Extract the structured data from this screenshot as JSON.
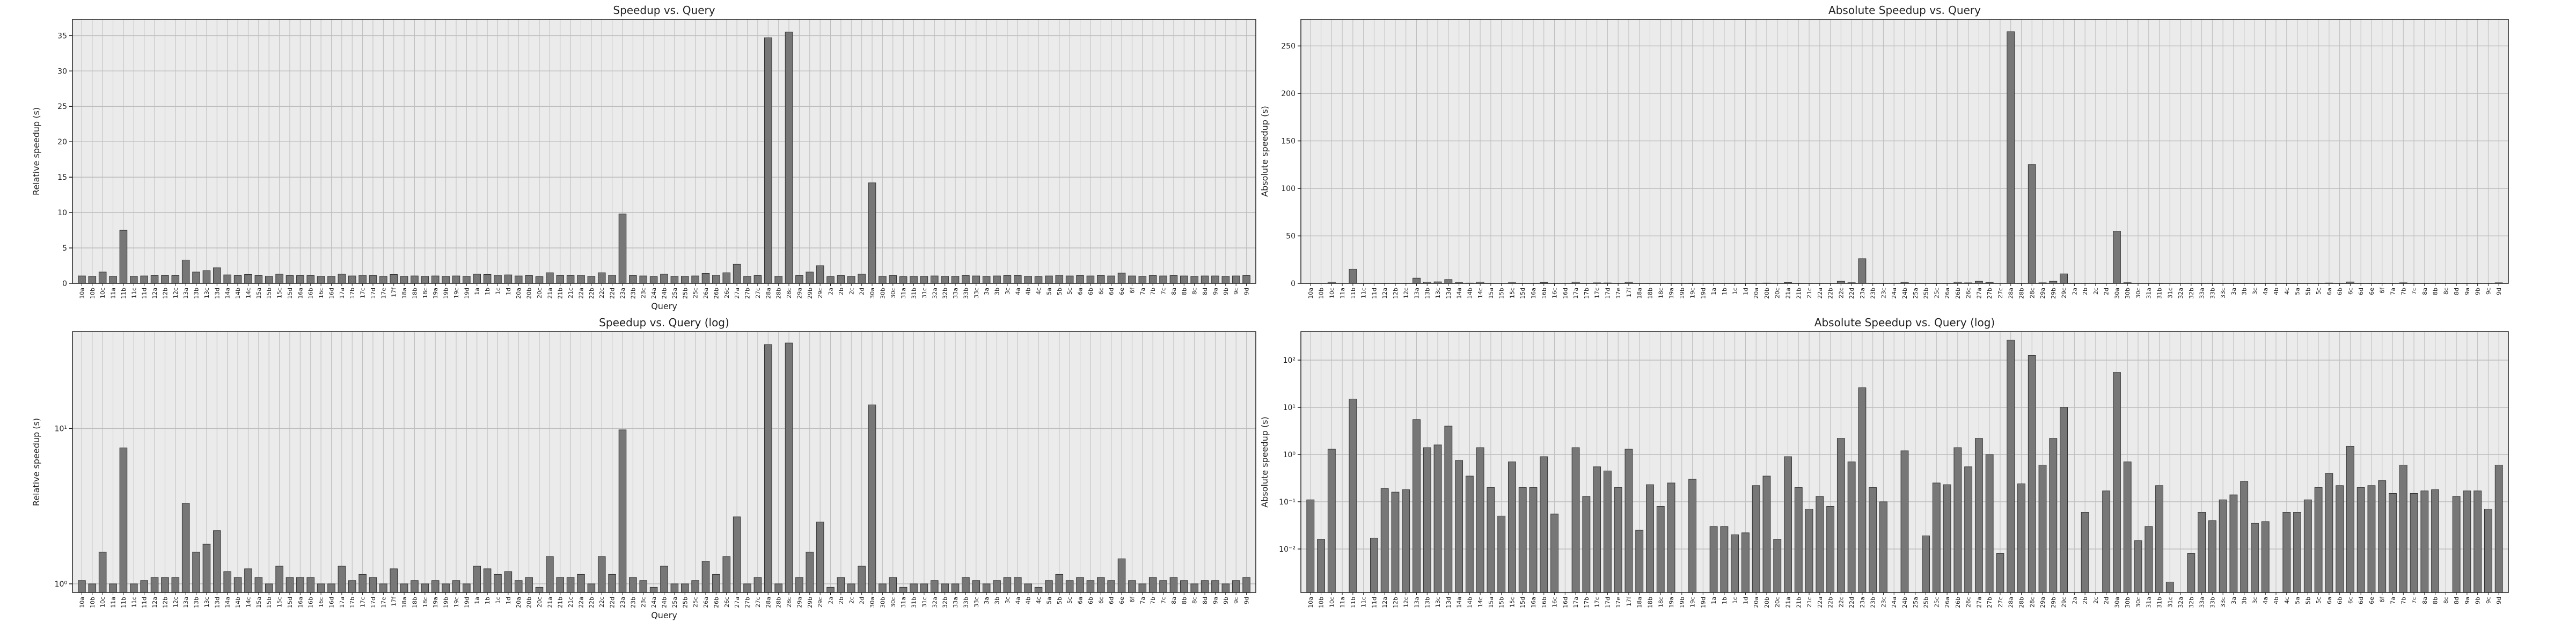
{
  "chart_data": [
    {
      "type": "bar",
      "title": "Speedup vs. Query",
      "xlabel": "Query",
      "ylabel": "Relative speedup (s)",
      "log_scale": false,
      "grid": true,
      "color": "#777777",
      "categories": [
        "10a",
        "10b",
        "10c",
        "11a",
        "11b",
        "11c",
        "11d",
        "12a",
        "12b",
        "12c",
        "13a",
        "13b",
        "13c",
        "13d",
        "14a",
        "14b",
        "14c",
        "15a",
        "15b",
        "15c",
        "15d",
        "16a",
        "16b",
        "16c",
        "16d",
        "17a",
        "17b",
        "17c",
        "17d",
        "17e",
        "17f",
        "18a",
        "18b",
        "18c",
        "19a",
        "19b",
        "19c",
        "19d",
        "1a",
        "1b",
        "1c",
        "1d",
        "20a",
        "20b",
        "20c",
        "21a",
        "21b",
        "21c",
        "22a",
        "22b",
        "22c",
        "22d",
        "23a",
        "23b",
        "23c",
        "24a",
        "24b",
        "25a",
        "25b",
        "25c",
        "26a",
        "26b",
        "26c",
        "27a",
        "27b",
        "27c",
        "28a",
        "28b",
        "28c",
        "29a",
        "29b",
        "29c",
        "2a",
        "2b",
        "2c",
        "2d",
        "30a",
        "30b",
        "30c",
        "31a",
        "31b",
        "31c",
        "32a",
        "32b",
        "33a",
        "33b",
        "33c",
        "3a",
        "3b",
        "3c",
        "4a",
        "4b",
        "4c",
        "5a",
        "5b",
        "5c",
        "6a",
        "6b",
        "6c",
        "6d",
        "6e",
        "6f",
        "7a",
        "7b",
        "7c",
        "8a",
        "8b",
        "8c",
        "8d",
        "9a",
        "9b",
        "9c",
        "9d"
      ],
      "values": [
        1.05,
        1.0,
        1.6,
        1.0,
        7.5,
        1.0,
        1.05,
        1.1,
        1.1,
        1.1,
        3.3,
        1.6,
        1.8,
        2.2,
        1.2,
        1.1,
        1.25,
        1.1,
        1.0,
        1.3,
        1.1,
        1.1,
        1.1,
        1.0,
        1.0,
        1.3,
        1.05,
        1.15,
        1.1,
        1.0,
        1.25,
        1.0,
        1.05,
        1.0,
        1.05,
        1.0,
        1.05,
        1.0,
        1.3,
        1.25,
        1.15,
        1.2,
        1.05,
        1.1,
        0.95,
        1.5,
        1.1,
        1.1,
        1.15,
        1.0,
        1.5,
        1.15,
        9.8,
        1.1,
        1.05,
        0.95,
        1.3,
        1.0,
        1.0,
        1.05,
        1.4,
        1.15,
        1.5,
        2.7,
        1.0,
        1.1,
        34.7,
        1.0,
        35.5,
        1.1,
        1.6,
        2.5,
        0.95,
        1.1,
        1.0,
        1.3,
        14.2,
        1.0,
        1.1,
        0.95,
        1.0,
        1.0,
        1.05,
        1.0,
        1.0,
        1.1,
        1.05,
        1.0,
        1.05,
        1.1,
        1.1,
        1.0,
        0.95,
        1.05,
        1.15,
        1.05,
        1.1,
        1.05,
        1.1,
        1.05,
        1.45,
        1.05,
        1.0,
        1.1,
        1.05,
        1.1,
        1.05,
        1.0,
        1.05,
        1.05,
        1.0,
        1.05,
        1.1
      ],
      "ylim": [
        0,
        37.3
      ],
      "yticks": [
        0,
        5,
        10,
        15,
        20,
        25,
        30,
        35
      ]
    },
    {
      "type": "bar",
      "title": "Absolute Speedup vs. Query",
      "ylabel": "Absolute speedup (s)",
      "log_scale": false,
      "grid": true,
      "color": "#777777",
      "categories": [
        "10a",
        "10b",
        "10c",
        "11a",
        "11b",
        "11c",
        "11d",
        "12a",
        "12b",
        "12c",
        "13a",
        "13b",
        "13c",
        "13d",
        "14a",
        "14b",
        "14c",
        "15a",
        "15b",
        "15c",
        "15d",
        "16a",
        "16b",
        "16c",
        "16d",
        "17a",
        "17b",
        "17c",
        "17d",
        "17e",
        "17f",
        "18a",
        "18b",
        "18c",
        "19a",
        "19b",
        "19c",
        "19d",
        "1a",
        "1b",
        "1c",
        "1d",
        "20a",
        "20b",
        "20c",
        "21a",
        "21b",
        "21c",
        "22a",
        "22b",
        "22c",
        "22d",
        "23a",
        "23b",
        "23c",
        "24a",
        "24b",
        "25a",
        "25b",
        "25c",
        "26a",
        "26b",
        "26c",
        "27a",
        "27b",
        "27c",
        "28a",
        "28b",
        "28c",
        "29a",
        "29b",
        "29c",
        "2a",
        "2b",
        "2c",
        "2d",
        "30a",
        "30b",
        "30c",
        "31a",
        "31b",
        "31c",
        "32a",
        "32b",
        "33a",
        "33b",
        "33c",
        "3a",
        "3b",
        "3c",
        "4a",
        "4b",
        "4c",
        "5a",
        "5b",
        "5c",
        "6a",
        "6b",
        "6c",
        "6d",
        "6e",
        "6f",
        "7a",
        "7b",
        "7c",
        "8a",
        "8b",
        "8c",
        "8d",
        "9a",
        "9b",
        "9c",
        "9d"
      ],
      "values": [
        0.11,
        0.016,
        1.3,
        0,
        15,
        0,
        0.017,
        0.19,
        0.16,
        0.18,
        5.5,
        1.4,
        1.6,
        4,
        0.75,
        0.35,
        1.4,
        0.2,
        0.05,
        0.7,
        0.2,
        0.2,
        0.9,
        0.055,
        0,
        1.4,
        0.13,
        0.55,
        0.45,
        0.2,
        1.3,
        0.025,
        0.23,
        0.08,
        0.25,
        0,
        0.3,
        0,
        0.03,
        0.03,
        0.02,
        0.022,
        0.22,
        0.35,
        0.016,
        0.9,
        0.2,
        0.07,
        0.13,
        0.08,
        2.2,
        0.7,
        26,
        0.2,
        0.1,
        0,
        1.2,
        0,
        0.019,
        0.25,
        0.23,
        1.4,
        0.55,
        2.2,
        1.0,
        0.008,
        265,
        0.24,
        125,
        0.6,
        2.2,
        10,
        0,
        0.06,
        0,
        0.17,
        55,
        0.7,
        0.015,
        0.03,
        0.22,
        0.002,
        0,
        0.008,
        0.06,
        0.04,
        0.11,
        0.14,
        0.27,
        0.035,
        0.038,
        0,
        0.06,
        0.06,
        0.11,
        0.2,
        0.4,
        0.22,
        1.5,
        0.2,
        0.22,
        0.28,
        0.15,
        0.6,
        0.15,
        0.17,
        0.18,
        0,
        0.13,
        0.17,
        0.17,
        0.07,
        0.6
      ],
      "ylim": [
        0,
        278
      ],
      "yticks": [
        0,
        50,
        100,
        150,
        200,
        250
      ]
    },
    {
      "type": "bar",
      "title": "Speedup vs. Query (log)",
      "xlabel": "Query",
      "ylabel": "Relative speedup (s)",
      "log_scale": true,
      "grid": true,
      "color": "#777777",
      "categories": [
        "10a",
        "10b",
        "10c",
        "11a",
        "11b",
        "11c",
        "11d",
        "12a",
        "12b",
        "12c",
        "13a",
        "13b",
        "13c",
        "13d",
        "14a",
        "14b",
        "14c",
        "15a",
        "15b",
        "15c",
        "15d",
        "16a",
        "16b",
        "16c",
        "16d",
        "17a",
        "17b",
        "17c",
        "17d",
        "17e",
        "17f",
        "18a",
        "18b",
        "18c",
        "19a",
        "19b",
        "19c",
        "19d",
        "1a",
        "1b",
        "1c",
        "1d",
        "20a",
        "20b",
        "20c",
        "21a",
        "21b",
        "21c",
        "22a",
        "22b",
        "22c",
        "22d",
        "23a",
        "23b",
        "23c",
        "24a",
        "24b",
        "25a",
        "25b",
        "25c",
        "26a",
        "26b",
        "26c",
        "27a",
        "27b",
        "27c",
        "28a",
        "28b",
        "28c",
        "29a",
        "29b",
        "29c",
        "2a",
        "2b",
        "2c",
        "2d",
        "30a",
        "30b",
        "30c",
        "31a",
        "31b",
        "31c",
        "32a",
        "32b",
        "33a",
        "33b",
        "33c",
        "3a",
        "3b",
        "3c",
        "4a",
        "4b",
        "4c",
        "5a",
        "5b",
        "5c",
        "6a",
        "6b",
        "6c",
        "6d",
        "6e",
        "6f",
        "7a",
        "7b",
        "7c",
        "8a",
        "8b",
        "8c",
        "8d",
        "9a",
        "9b",
        "9c",
        "9d"
      ],
      "values": [
        1.05,
        1.0,
        1.6,
        1.0,
        7.5,
        1.0,
        1.05,
        1.1,
        1.1,
        1.1,
        3.3,
        1.6,
        1.8,
        2.2,
        1.2,
        1.1,
        1.25,
        1.1,
        1.0,
        1.3,
        1.1,
        1.1,
        1.1,
        1.0,
        1.0,
        1.3,
        1.05,
        1.15,
        1.1,
        1.0,
        1.25,
        1.0,
        1.05,
        1.0,
        1.05,
        1.0,
        1.05,
        1.0,
        1.3,
        1.25,
        1.15,
        1.2,
        1.05,
        1.1,
        0.95,
        1.5,
        1.1,
        1.1,
        1.15,
        1.0,
        1.5,
        1.15,
        9.8,
        1.1,
        1.05,
        0.95,
        1.3,
        1.0,
        1.0,
        1.05,
        1.4,
        1.15,
        1.5,
        2.7,
        1.0,
        1.1,
        34.7,
        1.0,
        35.5,
        1.1,
        1.6,
        2.5,
        0.95,
        1.1,
        1.0,
        1.3,
        14.2,
        1.0,
        1.1,
        0.95,
        1.0,
        1.0,
        1.05,
        1.0,
        1.0,
        1.1,
        1.05,
        1.0,
        1.05,
        1.1,
        1.1,
        1.0,
        0.95,
        1.05,
        1.15,
        1.05,
        1.1,
        1.05,
        1.1,
        1.05,
        1.45,
        1.05,
        1.0,
        1.1,
        1.05,
        1.1,
        1.05,
        1.0,
        1.05,
        1.05,
        1.0,
        1.05,
        1.1
      ],
      "ylim": [
        0.88,
        42
      ],
      "yticks": [
        {
          "value": 1,
          "label": "10⁰"
        },
        {
          "value": 10,
          "label": "10¹"
        }
      ]
    },
    {
      "type": "bar",
      "title": "Absolute Speedup vs. Query (log)",
      "ylabel": "Absolute speedup (s)",
      "log_scale": true,
      "grid": true,
      "color": "#777777",
      "categories": [
        "10a",
        "10b",
        "10c",
        "11a",
        "11b",
        "11c",
        "11d",
        "12a",
        "12b",
        "12c",
        "13a",
        "13b",
        "13c",
        "13d",
        "14a",
        "14b",
        "14c",
        "15a",
        "15b",
        "15c",
        "15d",
        "16a",
        "16b",
        "16c",
        "16d",
        "17a",
        "17b",
        "17c",
        "17d",
        "17e",
        "17f",
        "18a",
        "18b",
        "18c",
        "19a",
        "19b",
        "19c",
        "19d",
        "1a",
        "1b",
        "1c",
        "1d",
        "20a",
        "20b",
        "20c",
        "21a",
        "21b",
        "21c",
        "22a",
        "22b",
        "22c",
        "22d",
        "23a",
        "23b",
        "23c",
        "24a",
        "24b",
        "25a",
        "25b",
        "25c",
        "26a",
        "26b",
        "26c",
        "27a",
        "27b",
        "27c",
        "28a",
        "28b",
        "28c",
        "29a",
        "29b",
        "29c",
        "2a",
        "2b",
        "2c",
        "2d",
        "30a",
        "30b",
        "30c",
        "31a",
        "31b",
        "31c",
        "32a",
        "32b",
        "33a",
        "33b",
        "33c",
        "3a",
        "3b",
        "3c",
        "4a",
        "4b",
        "4c",
        "5a",
        "5b",
        "5c",
        "6a",
        "6b",
        "6c",
        "6d",
        "6e",
        "6f",
        "7a",
        "7b",
        "7c",
        "8a",
        "8b",
        "8c",
        "8d",
        "9a",
        "9b",
        "9c",
        "9d"
      ],
      "values": [
        0.11,
        0.016,
        1.3,
        0,
        15,
        0,
        0.017,
        0.19,
        0.16,
        0.18,
        5.5,
        1.4,
        1.6,
        4,
        0.75,
        0.35,
        1.4,
        0.2,
        0.05,
        0.7,
        0.2,
        0.2,
        0.9,
        0.055,
        0,
        1.4,
        0.13,
        0.55,
        0.45,
        0.2,
        1.3,
        0.025,
        0.23,
        0.08,
        0.25,
        0,
        0.3,
        0,
        0.03,
        0.03,
        0.02,
        0.022,
        0.22,
        0.35,
        0.016,
        0.9,
        0.2,
        0.07,
        0.13,
        0.08,
        2.2,
        0.7,
        26,
        0.2,
        0.1,
        0,
        1.2,
        0,
        0.019,
        0.25,
        0.23,
        1.4,
        0.55,
        2.2,
        1.0,
        0.008,
        265,
        0.24,
        125,
        0.6,
        2.2,
        10,
        0,
        0.06,
        0,
        0.17,
        55,
        0.7,
        0.015,
        0.03,
        0.22,
        0.002,
        0,
        0.008,
        0.06,
        0.04,
        0.11,
        0.14,
        0.27,
        0.035,
        0.038,
        0,
        0.06,
        0.06,
        0.11,
        0.2,
        0.4,
        0.22,
        1.5,
        0.2,
        0.22,
        0.28,
        0.15,
        0.6,
        0.15,
        0.17,
        0.18,
        0,
        0.13,
        0.17,
        0.17,
        0.07,
        0.6
      ],
      "ylim": [
        0.0012,
        400
      ],
      "yticks": [
        {
          "value": 0.01,
          "label": "10⁻²"
        },
        {
          "value": 0.1,
          "label": "10⁻¹"
        },
        {
          "value": 1,
          "label": "10⁰"
        },
        {
          "value": 10,
          "label": "10¹"
        },
        {
          "value": 100,
          "label": "10²"
        }
      ]
    }
  ]
}
